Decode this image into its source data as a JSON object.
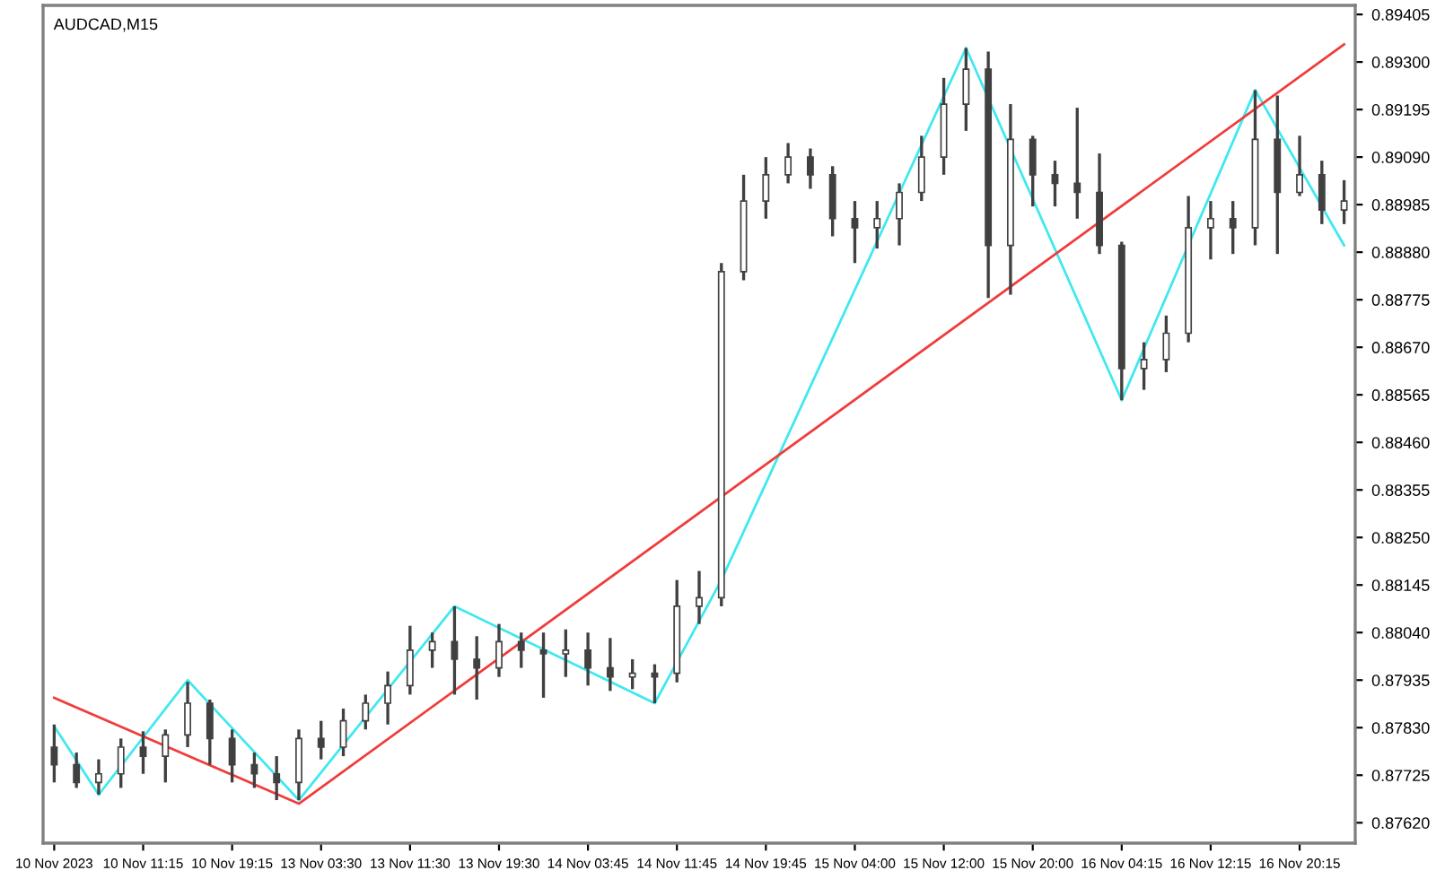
{
  "chart_data": {
    "type": "candlestick",
    "title": "AUDCAD,M15",
    "color": "#404040",
    "categories": [
      "10 Nov 2023",
      null,
      null,
      null,
      "10 Nov 11:15",
      null,
      null,
      null,
      "10 Nov 19:15",
      null,
      null,
      null,
      "13 Nov 03:30",
      null,
      null,
      null,
      "13 Nov 11:30",
      null,
      null,
      null,
      "13 Nov 19:30",
      null,
      null,
      null,
      "14 Nov 03:45",
      null,
      null,
      null,
      "14 Nov 11:45",
      null,
      null,
      null,
      "14 Nov 19:45",
      null,
      null,
      null,
      "15 Nov 04:00",
      null,
      null,
      null,
      "15 Nov 12:00",
      null,
      null,
      null,
      "15 Nov 20:00",
      null,
      null,
      null,
      "16 Nov 04:15",
      null,
      null,
      null,
      "16 Nov 12:15",
      null,
      null,
      null,
      "16 Nov 20:15",
      null,
      null
    ],
    "ohlc": [
      [
        0.87787,
        0.87837,
        0.87709,
        0.87748
      ],
      [
        0.87748,
        0.87775,
        0.87697,
        0.87709
      ],
      [
        0.87709,
        0.8776,
        0.87682,
        0.87728
      ],
      [
        0.87728,
        0.87806,
        0.87697,
        0.87787
      ],
      [
        0.87787,
        0.87822,
        0.87728,
        0.87767
      ],
      [
        0.87767,
        0.87826,
        0.87709,
        0.87814
      ],
      [
        0.87814,
        0.87931,
        0.87787,
        0.87884
      ],
      [
        0.87884,
        0.87892,
        0.87748,
        0.87806
      ],
      [
        0.87806,
        0.87826,
        0.87709,
        0.87748
      ],
      [
        0.87748,
        0.87775,
        0.87697,
        0.87728
      ],
      [
        0.87728,
        0.87767,
        0.8767,
        0.87709
      ],
      [
        0.87709,
        0.87826,
        0.8767,
        0.87806
      ],
      [
        0.87806,
        0.87845,
        0.8776,
        0.87787
      ],
      [
        0.87787,
        0.87872,
        0.87767,
        0.87845
      ],
      [
        0.87845,
        0.87903,
        0.87826,
        0.87884
      ],
      [
        0.87884,
        0.87954,
        0.87837,
        0.87923
      ],
      [
        0.87923,
        0.88055,
        0.87903,
        0.88001
      ],
      [
        0.88001,
        0.8804,
        0.87962,
        0.8802
      ],
      [
        0.8802,
        0.88098,
        0.87903,
        0.87981
      ],
      [
        0.87981,
        0.88032,
        0.87892,
        0.87962
      ],
      [
        0.87962,
        0.88059,
        0.87942,
        0.8802
      ],
      [
        0.8802,
        0.8804,
        0.87962,
        0.88001
      ],
      [
        0.88001,
        0.8804,
        0.87896,
        0.87993
      ],
      [
        0.87993,
        0.88047,
        0.87942,
        0.88001
      ],
      [
        0.88001,
        0.8804,
        0.87923,
        0.87962
      ],
      [
        0.87962,
        0.88028,
        0.87911,
        0.87942
      ],
      [
        0.87942,
        0.87981,
        0.87915,
        0.8795
      ],
      [
        0.8795,
        0.8797,
        0.87884,
        0.87942
      ],
      [
        0.8795,
        0.88156,
        0.8793,
        0.88098
      ],
      [
        0.88098,
        0.88176,
        0.88059,
        0.88117
      ],
      [
        0.88117,
        0.88856,
        0.88098,
        0.88837
      ],
      [
        0.88837,
        0.89051,
        0.88818,
        0.88993
      ],
      [
        0.88993,
        0.8909,
        0.88954,
        0.89051
      ],
      [
        0.89051,
        0.89121,
        0.89032,
        0.8909
      ],
      [
        0.8909,
        0.89109,
        0.8902,
        0.89051
      ],
      [
        0.89051,
        0.8907,
        0.88915,
        0.88954
      ],
      [
        0.88954,
        0.88993,
        0.88856,
        0.88934
      ],
      [
        0.88934,
        0.88993,
        0.88888,
        0.88954
      ],
      [
        0.88954,
        0.89032,
        0.88895,
        0.89012
      ],
      [
        0.89012,
        0.89137,
        0.88993,
        0.8909
      ],
      [
        0.8909,
        0.89265,
        0.89051,
        0.89207
      ],
      [
        0.89207,
        0.89331,
        0.89148,
        0.89284
      ],
      [
        0.89284,
        0.89323,
        0.88779,
        0.88895
      ],
      [
        0.88895,
        0.89207,
        0.88786,
        0.89129
      ],
      [
        0.89129,
        0.89137,
        0.88981,
        0.89051
      ],
      [
        0.89051,
        0.89082,
        0.88981,
        0.89032
      ],
      [
        0.89032,
        0.89199,
        0.88954,
        0.89012
      ],
      [
        0.89012,
        0.89098,
        0.88876,
        0.88895
      ],
      [
        0.88895,
        0.88903,
        0.88553,
        0.88623
      ],
      [
        0.88623,
        0.88681,
        0.88576,
        0.88643
      ],
      [
        0.88643,
        0.8874,
        0.88615,
        0.88701
      ],
      [
        0.88701,
        0.89004,
        0.88681,
        0.88934
      ],
      [
        0.88934,
        0.88993,
        0.88864,
        0.88954
      ],
      [
        0.88954,
        0.88993,
        0.88876,
        0.88934
      ],
      [
        0.88934,
        0.89238,
        0.88895,
        0.89129
      ],
      [
        0.89129,
        0.89226,
        0.88876,
        0.89012
      ],
      [
        0.89012,
        0.89137,
        0.89004,
        0.89051
      ],
      [
        0.89051,
        0.89082,
        0.88942,
        0.88973
      ],
      [
        0.88973,
        0.89039,
        0.88942,
        0.88993
      ]
    ],
    "series": [
      {
        "type": "line",
        "color": "#40e8f0",
        "values": [
          0.87833,
          null,
          0.87682,
          null,
          null,
          null,
          0.87935,
          null,
          null,
          null,
          null,
          0.8767,
          null,
          null,
          null,
          null,
          null,
          null,
          0.88098,
          null,
          null,
          null,
          null,
          null,
          null,
          null,
          null,
          0.87884,
          null,
          null,
          0.88156,
          null,
          null,
          null,
          null,
          null,
          null,
          null,
          null,
          null,
          null,
          0.89331,
          null,
          null,
          null,
          null,
          null,
          null,
          0.88553,
          null,
          null,
          null,
          null,
          null,
          0.89238,
          null,
          null,
          null,
          0.88895
        ]
      },
      {
        "type": "line",
        "color": "#f03c3c",
        "values": [
          0.87896,
          null,
          null,
          null,
          null,
          null,
          null,
          null,
          null,
          null,
          null,
          0.87662,
          null,
          null,
          null,
          null,
          null,
          null,
          null,
          null,
          null,
          null,
          null,
          null,
          null,
          null,
          null,
          null,
          null,
          null,
          null,
          null,
          null,
          null,
          null,
          null,
          null,
          null,
          null,
          null,
          null,
          null,
          null,
          null,
          null,
          null,
          null,
          null,
          null,
          null,
          null,
          null,
          null,
          null,
          null,
          null,
          null,
          null,
          0.89339
        ]
      }
    ],
    "ylim": [
      0.87575,
      0.89425
    ],
    "yticks": [
      {
        "value": 0.8762,
        "label": "0.87620"
      },
      0.87725,
      {
        "value": 0.8783,
        "label": "0.87830"
      },
      0.87935,
      {
        "value": 0.8804,
        "label": "0.88040"
      },
      0.88145,
      {
        "value": 0.8825,
        "label": "0.88250"
      },
      0.88355,
      {
        "value": 0.8846,
        "label": "0.88460"
      },
      0.88565,
      {
        "value": 0.8867,
        "label": "0.88670"
      },
      0.88775,
      {
        "value": 0.8888,
        "label": "0.88880"
      },
      0.88985,
      {
        "value": 0.8909,
        "label": "0.89090"
      },
      0.89195,
      {
        "value": 0.893,
        "label": "0.89300"
      },
      0.89405
    ],
    "grid": false,
    "legend": false
  }
}
